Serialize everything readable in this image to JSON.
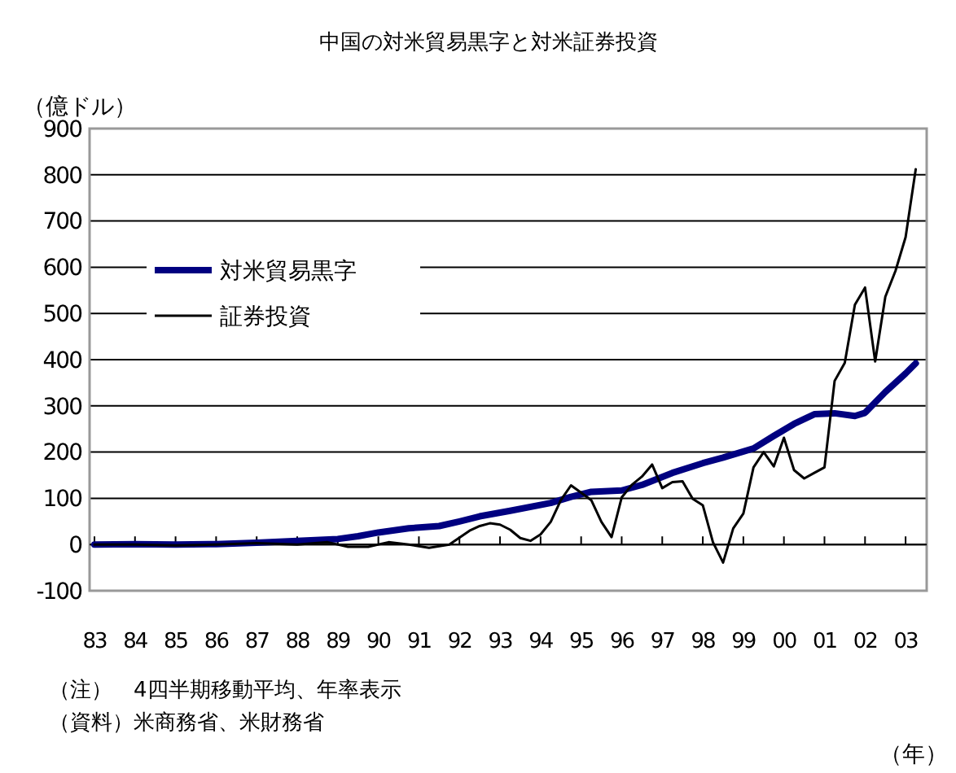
{
  "chart_data": {
    "type": "line",
    "title": "中国の対米貿易黒字と対米証券投資",
    "ylabel": "（億ドル）",
    "xlabel": "（年）",
    "annotations": [
      "（注）　4四半期移動平均、年率表示",
      "（資料）米商務省、米財務省"
    ],
    "xlim": [
      1982.88,
      2003.52
    ],
    "xticks": [
      {
        "value": 1983,
        "label": "83"
      },
      {
        "value": 1984,
        "label": "84"
      },
      {
        "value": 1985,
        "label": "85"
      },
      {
        "value": 1986,
        "label": "86"
      },
      {
        "value": 1987,
        "label": "87"
      },
      {
        "value": 1988,
        "label": "88"
      },
      {
        "value": 1989,
        "label": "89"
      },
      {
        "value": 1990,
        "label": "90"
      },
      {
        "value": 1991,
        "label": "91"
      },
      {
        "value": 1992,
        "label": "92"
      },
      {
        "value": 1993,
        "label": "93"
      },
      {
        "value": 1994,
        "label": "94"
      },
      {
        "value": 1995,
        "label": "95"
      },
      {
        "value": 1996,
        "label": "96"
      },
      {
        "value": 1997,
        "label": "97"
      },
      {
        "value": 1998,
        "label": "98"
      },
      {
        "value": 1999,
        "label": "99"
      },
      {
        "value": 2000,
        "label": "00"
      },
      {
        "value": 2001,
        "label": "01"
      },
      {
        "value": 2002,
        "label": "02"
      },
      {
        "value": 2003,
        "label": "03"
      }
    ],
    "ylim": [
      -100,
      900
    ],
    "yticks": [
      -100,
      0,
      100,
      200,
      300,
      400,
      500,
      600,
      700,
      800,
      900
    ],
    "grid": "y",
    "legend": "left",
    "marker": "none",
    "line_style": "solid",
    "series": [
      {
        "name": "対米貿易黒字",
        "color": "#000080",
        "x": [
          1983,
          1984,
          1985,
          1986,
          1987,
          1988,
          1989,
          1989.5,
          1990,
          1990.75,
          1991.5,
          1992,
          1992.5,
          1993.25,
          1994.25,
          1994.75,
          1995.25,
          1996,
          1996.5,
          1997.25,
          1998,
          1998.5,
          1999.25,
          1999.75,
          2000.25,
          2000.75,
          2001.25,
          2001.75,
          2002,
          2002.5,
          2003,
          2003.25
        ],
        "values": [
          0,
          1,
          0,
          1,
          4,
          8,
          12,
          18,
          26,
          35,
          40,
          50,
          61,
          73,
          90,
          103,
          114,
          117,
          129,
          155,
          176,
          188,
          208,
          235,
          261,
          282,
          284,
          278,
          285,
          330,
          370,
          392
        ]
      },
      {
        "name": "証券投資",
        "color": "#000000",
        "x": [
          1983,
          1984,
          1985,
          1986,
          1987,
          1988,
          1988.75,
          1989.25,
          1989.75,
          1990.25,
          1990.75,
          1991.25,
          1991.75,
          1992,
          1992.25,
          1992.5,
          1992.75,
          1993,
          1993.25,
          1993.5,
          1993.75,
          1994,
          1994.25,
          1994.5,
          1994.75,
          1995,
          1995.25,
          1995.5,
          1995.75,
          1996,
          1996.25,
          1996.5,
          1996.75,
          1997,
          1997.25,
          1997.5,
          1997.75,
          1998,
          1998.25,
          1998.5,
          1998.75,
          1999,
          1999.25,
          1999.5,
          1999.75,
          2000,
          2000.25,
          2000.5,
          2000.75,
          2001,
          2001.25,
          2001.5,
          2001.75,
          2002,
          2002.25,
          2002.5,
          2002.75,
          2003,
          2003.25
        ],
        "values": [
          0,
          0,
          -2,
          0,
          3,
          0,
          5,
          -5,
          -5,
          5,
          0,
          -7,
          0,
          15,
          30,
          40,
          46,
          43,
          32,
          14,
          8,
          22,
          49,
          96,
          128,
          112,
          96,
          49,
          16,
          102,
          129,
          147,
          173,
          122,
          135,
          137,
          99,
          85,
          5,
          -39,
          35,
          67,
          167,
          200,
          169,
          231,
          161,
          143,
          155,
          167,
          354,
          393,
          519,
          556,
          396,
          536,
          592,
          665,
          812
        ]
      }
    ]
  }
}
